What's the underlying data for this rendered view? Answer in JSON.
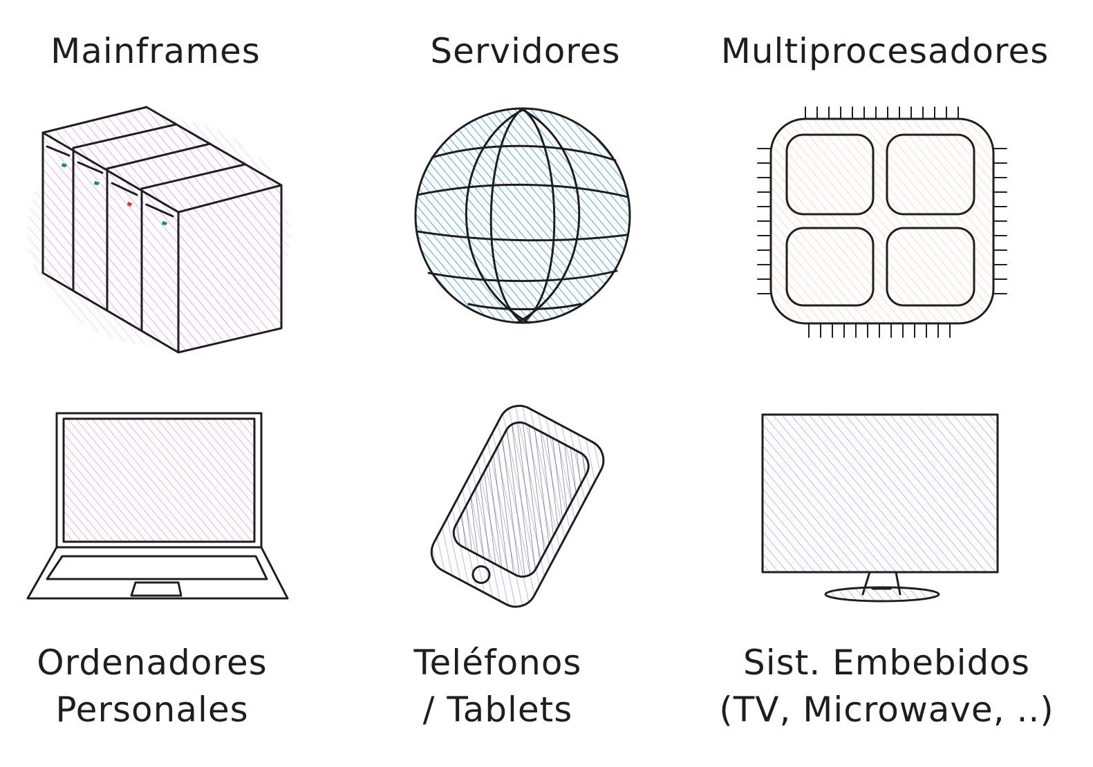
{
  "labels": {
    "mainframes": "Mainframes",
    "servidores": "Servidores",
    "multiprocesadores": "Multiprocesadores",
    "ordenadores_line1": "Ordenadores",
    "ordenadores_line2": "Personales",
    "telefonos_line1": "Teléfonos",
    "telefonos_line2": "/ Tablets",
    "embebidos_line1": "Sist. Embebidos",
    "embebidos_line2": "(TV, Microwave, ..)"
  },
  "icons": [
    "server-rack-icon",
    "globe-icon",
    "cpu-chip-icon",
    "laptop-icon",
    "tablet-phone-icon",
    "monitor-icon"
  ],
  "colors": {
    "ink": "#1e1e1e",
    "mainframe_fill": "#e599f7",
    "globe_fill": "#339af0",
    "chip_fill": "#ffc9c9",
    "laptop_fill": "#fcc2d7",
    "tablet_fill": "#b197fc",
    "monitor_fill": "#b197fc",
    "led_green": "#099268",
    "led_red": "#e03131"
  }
}
